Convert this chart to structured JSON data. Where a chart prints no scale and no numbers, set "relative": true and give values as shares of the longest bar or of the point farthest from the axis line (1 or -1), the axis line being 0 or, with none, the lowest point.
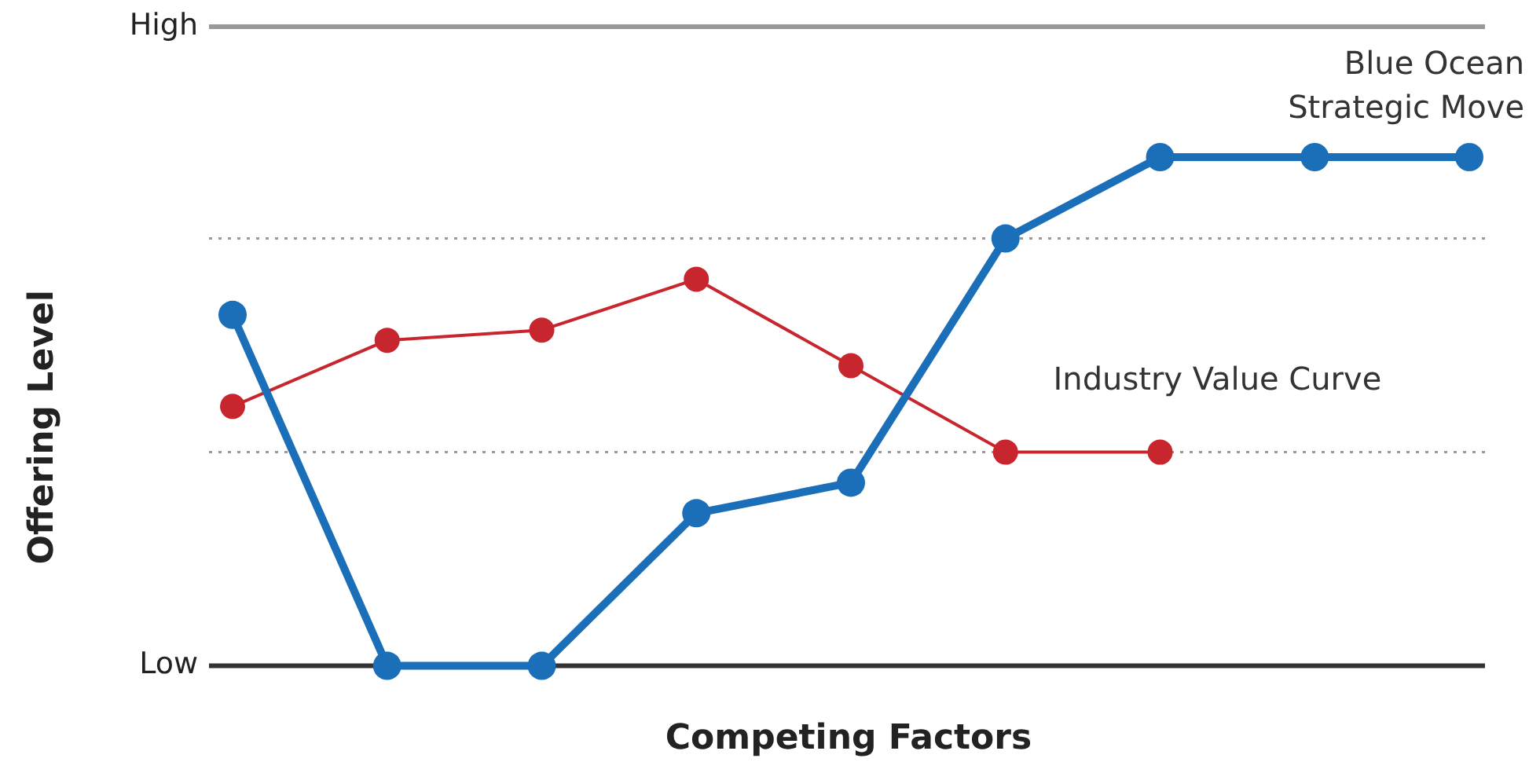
{
  "chart_data": {
    "type": "line",
    "xlabel": "Competing Factors",
    "ylabel": "Offering Level",
    "annotations": [
      "Low",
      "High"
    ],
    "categories": [
      null,
      null,
      null,
      null,
      null,
      null,
      null,
      null,
      null
    ],
    "relative": true,
    "series": [
      {
        "name": "Blue Ocean Strategic Move",
        "color": "#1b6fb9",
        "values": [
          0.69,
          0,
          0,
          0.3,
          0.36,
          0.84,
          1,
          1,
          1
        ]
      },
      {
        "name": "Industry Value Curve",
        "color": "#c8262e",
        "values": [
          0.51,
          0.64,
          0.66,
          0.76,
          0.59,
          0.42,
          0.42,
          null,
          null
        ]
      }
    ],
    "ref_lines": [
      {
        "axis": "y",
        "value": 0.84,
        "color": "#999999",
        "line_style": "dotted"
      },
      {
        "axis": "y",
        "value": 0.42,
        "color": "#999999",
        "line_style": "dotted"
      }
    ],
    "marker": "circle",
    "line_style": "solid",
    "legend": false
  }
}
